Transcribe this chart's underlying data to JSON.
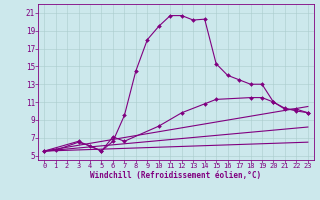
{
  "xlabel": "Windchill (Refroidissement éolien,°C)",
  "bg_color": "#cce8ec",
  "line_color": "#800080",
  "grid_color": "#aacccc",
  "axis_color": "#800080",
  "xlim": [
    -0.5,
    23.5
  ],
  "ylim": [
    4.5,
    22
  ],
  "xticks": [
    0,
    1,
    2,
    3,
    4,
    5,
    6,
    7,
    8,
    9,
    10,
    11,
    12,
    13,
    14,
    15,
    16,
    17,
    18,
    19,
    20,
    21,
    22,
    23
  ],
  "yticks": [
    5,
    7,
    9,
    11,
    13,
    15,
    17,
    19,
    21
  ],
  "curve1_x": [
    0,
    1,
    3,
    4,
    5,
    6,
    7,
    8,
    9,
    10,
    11,
    12,
    13,
    14,
    15,
    16,
    17,
    18,
    19,
    20,
    21,
    22,
    23
  ],
  "curve1_y": [
    5.5,
    5.6,
    6.5,
    6.1,
    5.5,
    6.6,
    9.5,
    14.5,
    18.0,
    19.5,
    20.7,
    20.7,
    20.2,
    20.3,
    15.3,
    14.0,
    13.5,
    13.0,
    13.0,
    11.0,
    10.2,
    10.2,
    9.8
  ],
  "curve2_x": [
    0,
    3,
    5,
    6,
    7,
    10,
    12,
    14,
    15,
    18,
    19,
    20,
    21,
    22,
    23
  ],
  "curve2_y": [
    5.5,
    6.6,
    5.5,
    7.1,
    6.6,
    8.3,
    9.8,
    10.8,
    11.3,
    11.5,
    11.5,
    11.0,
    10.3,
    10.0,
    9.8
  ],
  "curve3_x": [
    0,
    23
  ],
  "curve3_y": [
    5.5,
    10.5
  ],
  "curve4_x": [
    0,
    23
  ],
  "curve4_y": [
    5.5,
    8.2
  ],
  "curve5_x": [
    0,
    23
  ],
  "curve5_y": [
    5.5,
    6.5
  ],
  "markersize": 2.0,
  "linewidth": 0.8
}
